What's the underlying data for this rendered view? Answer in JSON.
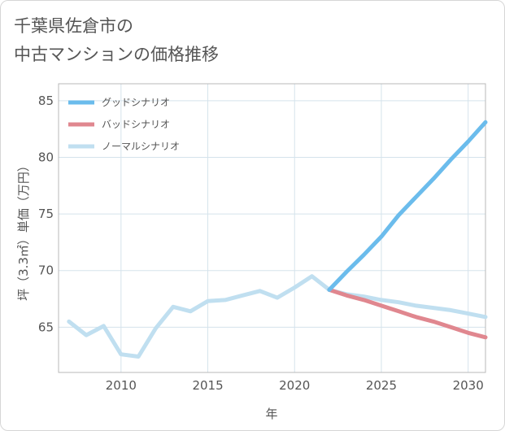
{
  "title": {
    "line1": "千葉県佐倉市の",
    "line2": "中古マンションの価格推移"
  },
  "chart_data": {
    "type": "line",
    "xlabel": "年",
    "ylabel": "坪（3.3㎡）単価（万円）",
    "xlim": [
      2006.4,
      2031
    ],
    "ylim": [
      61,
      86.5
    ],
    "xticks": [
      2010,
      2015,
      2020,
      2025,
      2030
    ],
    "yticks": [
      65,
      70,
      75,
      80,
      85
    ],
    "grid": true,
    "legend_position": "top-left",
    "series": [
      {
        "name": "グッドシナリオ",
        "color": "#6bbcec",
        "x": [
          2022,
          2023,
          2024,
          2025,
          2026,
          2027,
          2028,
          2029,
          2030,
          2031
        ],
        "y": [
          68.3,
          69.9,
          71.4,
          73.0,
          74.9,
          76.5,
          78.1,
          79.8,
          81.4,
          83.1
        ]
      },
      {
        "name": "バッドシナリオ",
        "color": "#e0878f",
        "x": [
          2022,
          2023,
          2024,
          2025,
          2026,
          2027,
          2028,
          2029,
          2030,
          2031
        ],
        "y": [
          68.3,
          67.8,
          67.4,
          66.9,
          66.4,
          65.9,
          65.5,
          65.0,
          64.5,
          64.1
        ]
      },
      {
        "name": "ノーマルシナリオ",
        "color": "#c0dff0",
        "x": [
          2007,
          2008,
          2009,
          2010,
          2011,
          2012,
          2013,
          2014,
          2015,
          2016,
          2017,
          2018,
          2019,
          2020,
          2021,
          2022,
          2023,
          2024,
          2025,
          2026,
          2027,
          2028,
          2029,
          2030,
          2031
        ],
        "y": [
          65.5,
          64.3,
          65.1,
          62.6,
          62.4,
          64.9,
          66.8,
          66.4,
          67.3,
          67.4,
          67.8,
          68.2,
          67.6,
          68.5,
          69.5,
          68.3,
          67.9,
          67.7,
          67.4,
          67.2,
          66.9,
          66.7,
          66.5,
          66.2,
          65.9
        ]
      }
    ]
  }
}
